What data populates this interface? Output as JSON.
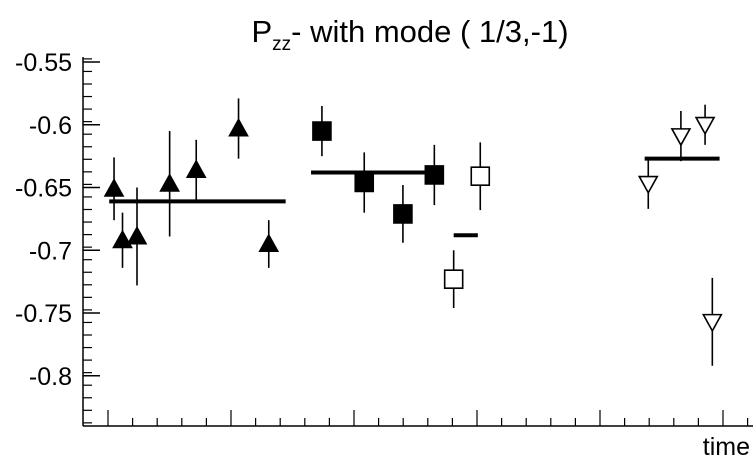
{
  "chart_data": {
    "type": "scatter",
    "title": {
      "main": "P",
      "subscript": "zz",
      "suffix": "- with mode ( 1/3,-1)"
    },
    "xlabel": "time",
    "ylabel": "",
    "ylim": [
      -0.84,
      -0.546
    ],
    "xlim": [
      0,
      25.4
    ],
    "y_ticks": [
      -0.55,
      -0.6,
      -0.65,
      -0.7,
      -0.75,
      -0.8
    ],
    "y_tick_labels": [
      "-0.55",
      "-0.6",
      "-0.65",
      "-0.7",
      "-0.75",
      "-0.8"
    ],
    "x_tick_labels_visible": false,
    "grid": false,
    "legend": "none",
    "series": [
      {
        "marker": "triangle-up-filled",
        "color": "#000000",
        "points": [
          {
            "x": 0.25,
            "y": -0.651,
            "err": 0.025
          },
          {
            "x": 0.6,
            "y": -0.692,
            "err": 0.022
          },
          {
            "x": 1.2,
            "y": -0.689,
            "err": 0.039
          },
          {
            "x": 2.55,
            "y": -0.647,
            "err": 0.042
          },
          {
            "x": 3.65,
            "y": -0.636,
            "err": 0.024
          },
          {
            "x": 5.4,
            "y": -0.603,
            "err": 0.024
          },
          {
            "x": 6.65,
            "y": -0.695,
            "err": 0.019
          }
        ],
        "mean": {
          "y": -0.661,
          "x_from": 0.05,
          "x_to": 7.35
        }
      },
      {
        "marker": "square-filled",
        "color": "#000000",
        "points": [
          {
            "x": 8.85,
            "y": -0.605,
            "err": 0.02
          },
          {
            "x": 10.6,
            "y": -0.646,
            "err": 0.024
          },
          {
            "x": 12.2,
            "y": -0.671,
            "err": 0.023
          },
          {
            "x": 13.5,
            "y": -0.64,
            "err": 0.024
          }
        ],
        "mean": {
          "y": -0.638,
          "x_from": 8.4,
          "x_to": 13.8
        }
      },
      {
        "marker": "square-open",
        "color": "#000000",
        "points": [
          {
            "x": 14.3,
            "y": -0.723,
            "err": 0.023
          },
          {
            "x": 15.4,
            "y": -0.641,
            "err": 0.027
          }
        ],
        "mean": {
          "y": -0.688,
          "x_from": 14.3,
          "x_to": 15.3
        }
      },
      {
        "marker": "triangle-down-open",
        "color": "#000000",
        "points": [
          {
            "x": 22.35,
            "y": -0.647,
            "err": 0.02
          },
          {
            "x": 23.7,
            "y": -0.609,
            "err": 0.02
          },
          {
            "x": 24.7,
            "y": -0.6,
            "err": 0.016
          },
          {
            "x": 25.0,
            "y": -0.757,
            "err": 0.035
          }
        ],
        "mean": {
          "y": -0.627,
          "x_from": 22.2,
          "x_to": 25.3
        }
      }
    ]
  }
}
